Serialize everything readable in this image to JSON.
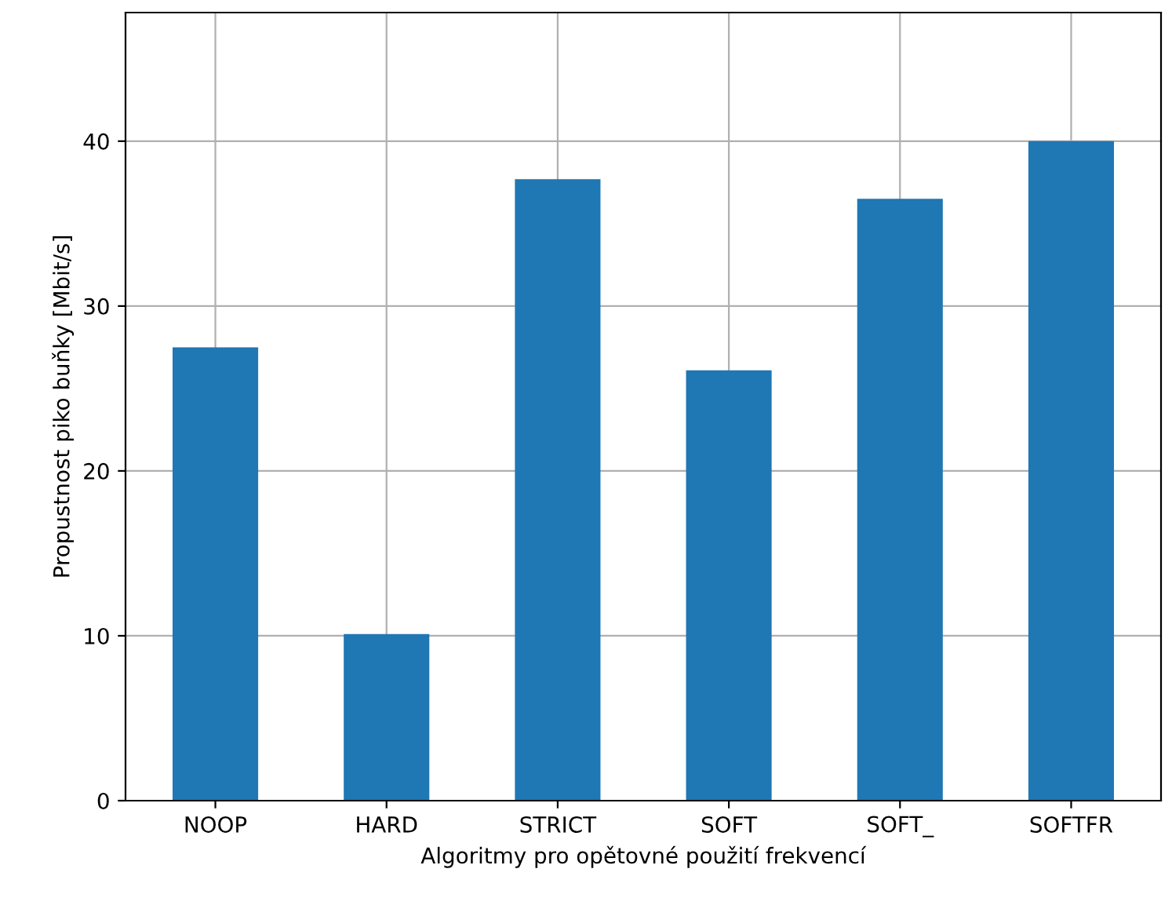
{
  "chart_data": {
    "type": "bar",
    "xlabel": "Algoritmy pro opětovné použití frekvencí",
    "ylabel": "Propustnost piko buňky [Mbit/s]",
    "categories": [
      "NOOP",
      "HARD",
      "STRICT",
      "SOFT",
      "SOFT_",
      "SOFTFR"
    ],
    "values": [
      27.5,
      10.1,
      37.7,
      26.1,
      36.5,
      40.0
    ],
    "color": "#1f77b4",
    "ylim": [
      0,
      47.8
    ],
    "yticks": [
      0,
      10,
      20,
      30,
      40
    ],
    "grid": true
  }
}
